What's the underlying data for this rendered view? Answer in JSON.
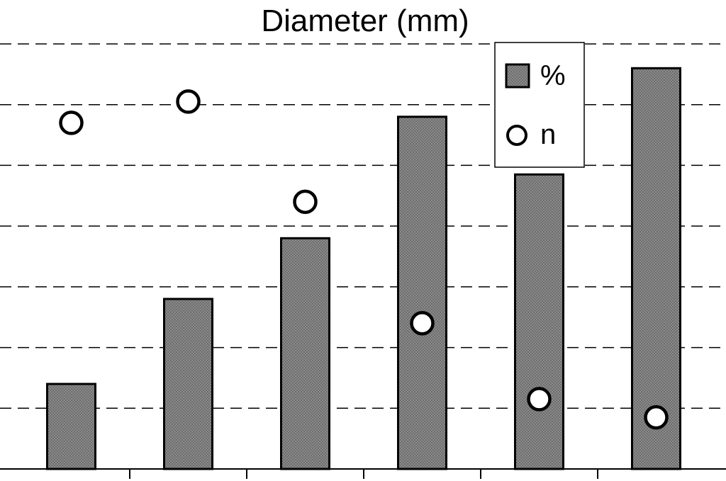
{
  "chart_data": {
    "type": "bar",
    "title": "Diameter (mm)",
    "xlabel": "",
    "ylabel": "",
    "categories": [
      "",
      "",
      "",
      "",
      "",
      ""
    ],
    "ylim": [
      0,
      7
    ],
    "grid": true,
    "legend_position": "top-right",
    "series": [
      {
        "name": "%",
        "kind": "bar",
        "values": [
          1.4,
          2.8,
          3.8,
          5.8,
          4.85,
          6.6
        ],
        "color": "#7f7f7f"
      },
      {
        "name": "n",
        "kind": "scatter",
        "values": [
          5.7,
          6.05,
          4.4,
          2.4,
          1.15,
          0.85
        ],
        "color": "#ffffff"
      }
    ]
  }
}
